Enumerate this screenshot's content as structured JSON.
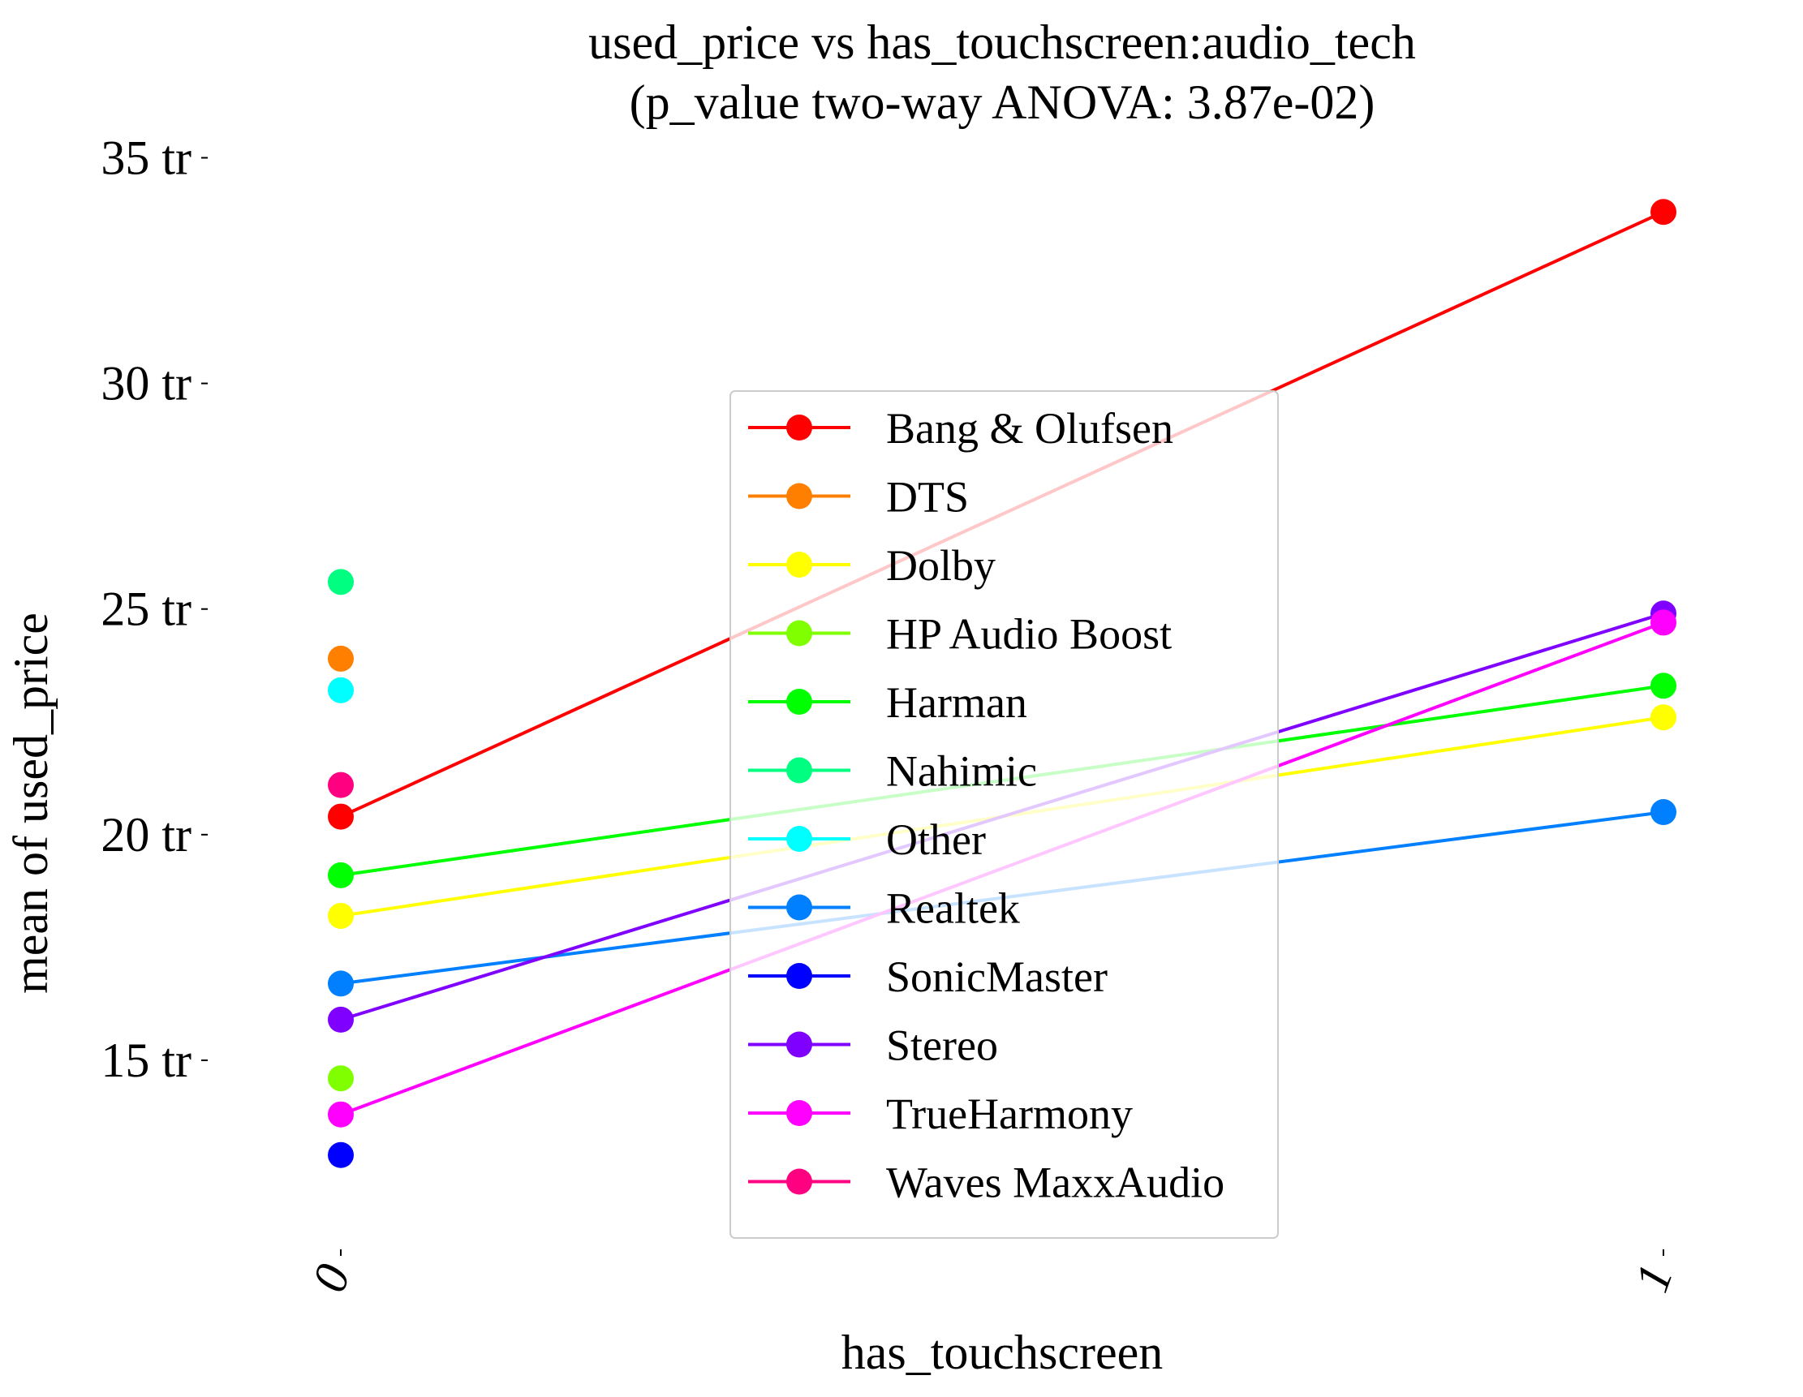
{
  "chart_data": {
    "type": "line",
    "title": "used_price vs has_touchscreen:audio_tech",
    "subtitle": "(p_value two-way ANOVA: 3.87e-02)",
    "xlabel": "has_touchscreen",
    "ylabel": "mean of used_price",
    "categories": [
      "0",
      "1"
    ],
    "ylim": [
      10.9,
      35.8
    ],
    "yticks": [
      {
        "value": 15,
        "label": "15 tr"
      },
      {
        "value": 20,
        "label": "20 tr"
      },
      {
        "value": 25,
        "label": "25 tr"
      },
      {
        "value": 30,
        "label": "30 tr"
      },
      {
        "value": 35,
        "label": "35 tr"
      }
    ],
    "grid": false,
    "legend_position": "center",
    "series": [
      {
        "name": "Bang & Olufsen",
        "color": "#ff0000",
        "values": [
          20.4,
          33.8
        ]
      },
      {
        "name": "DTS",
        "color": "#ff8000",
        "values": [
          23.9,
          null
        ]
      },
      {
        "name": "Dolby",
        "color": "#ffff00",
        "values": [
          18.2,
          22.6
        ]
      },
      {
        "name": "HP Audio Boost",
        "color": "#80ff00",
        "values": [
          14.6,
          null
        ]
      },
      {
        "name": "Harman",
        "color": "#00ff00",
        "values": [
          19.1,
          23.3
        ]
      },
      {
        "name": "Nahimic",
        "color": "#00ff80",
        "values": [
          25.6,
          null
        ]
      },
      {
        "name": "Other",
        "color": "#00ffff",
        "values": [
          23.2,
          null
        ]
      },
      {
        "name": "Realtek",
        "color": "#0080ff",
        "values": [
          16.7,
          20.5
        ]
      },
      {
        "name": "SonicMaster",
        "color": "#0000ff",
        "values": [
          12.9,
          null
        ]
      },
      {
        "name": "Stereo",
        "color": "#8000ff",
        "values": [
          15.9,
          24.9
        ]
      },
      {
        "name": "TrueHarmony",
        "color": "#ff00ff",
        "values": [
          13.8,
          24.7
        ]
      },
      {
        "name": "Waves MaxxAudio",
        "color": "#ff0080",
        "values": [
          21.1,
          null
        ]
      }
    ]
  }
}
